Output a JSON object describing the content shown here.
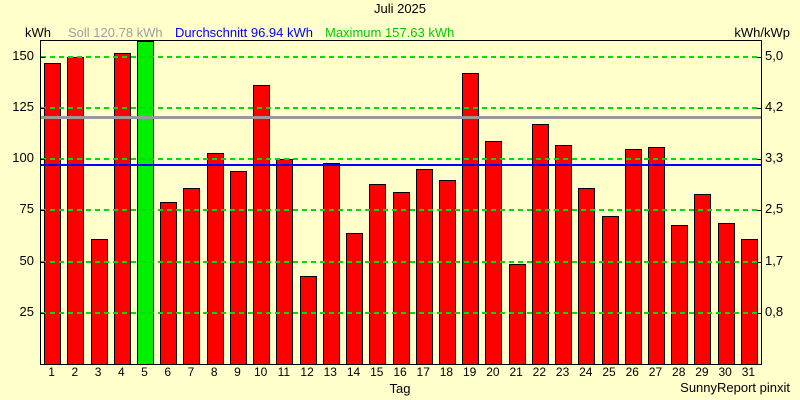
{
  "title": "Juli 2025",
  "header": {
    "left_unit": "kWh",
    "right_unit": "kWh/kWp",
    "soll_label": "Soll 120.78 kWh",
    "avg_label": "Durchschnitt 96.94 kWh",
    "max_label": "Maximum 157.63 kWh"
  },
  "footer": {
    "xlabel": "Tag",
    "credit": "SunnyReport pinxit"
  },
  "chart_data": {
    "type": "bar",
    "title": "Juli 2025",
    "xlabel": "Tag",
    "ylabel_left": "kWh",
    "ylabel_right": "kWh/kWp",
    "categories": [
      1,
      2,
      3,
      4,
      5,
      6,
      7,
      8,
      9,
      10,
      11,
      12,
      13,
      14,
      15,
      16,
      17,
      18,
      19,
      20,
      21,
      22,
      23,
      24,
      25,
      26,
      27,
      28,
      29,
      30,
      31
    ],
    "values": [
      147,
      150,
      61,
      152,
      157.63,
      79,
      86,
      103,
      94,
      136,
      100,
      43,
      98,
      64,
      88,
      84,
      95,
      90,
      142,
      109,
      49,
      117,
      107,
      86,
      72,
      105,
      106,
      68,
      83,
      69,
      61
    ],
    "soll": 120.78,
    "durchschnitt": 96.94,
    "maximum": 157.63,
    "maximum_day": 5,
    "ylim": [
      0,
      157.63
    ],
    "yticks_left": [
      25,
      50,
      75,
      100,
      125,
      150
    ],
    "yticks_right": [
      "0,8",
      "1,7",
      "2,5",
      "3,3",
      "4,2",
      "5,0"
    ],
    "grid": true,
    "legend_position": "top",
    "colors": {
      "bar": "#ff0000",
      "bar_max": "#00ee00",
      "grid": "#00dd00",
      "soll_line": "#999999",
      "avg_line": "#0000ff",
      "background": "#ffffcc",
      "soll_text": "#a0a0a0",
      "avg_text": "#0000ff",
      "max_text": "#00cc00"
    }
  }
}
